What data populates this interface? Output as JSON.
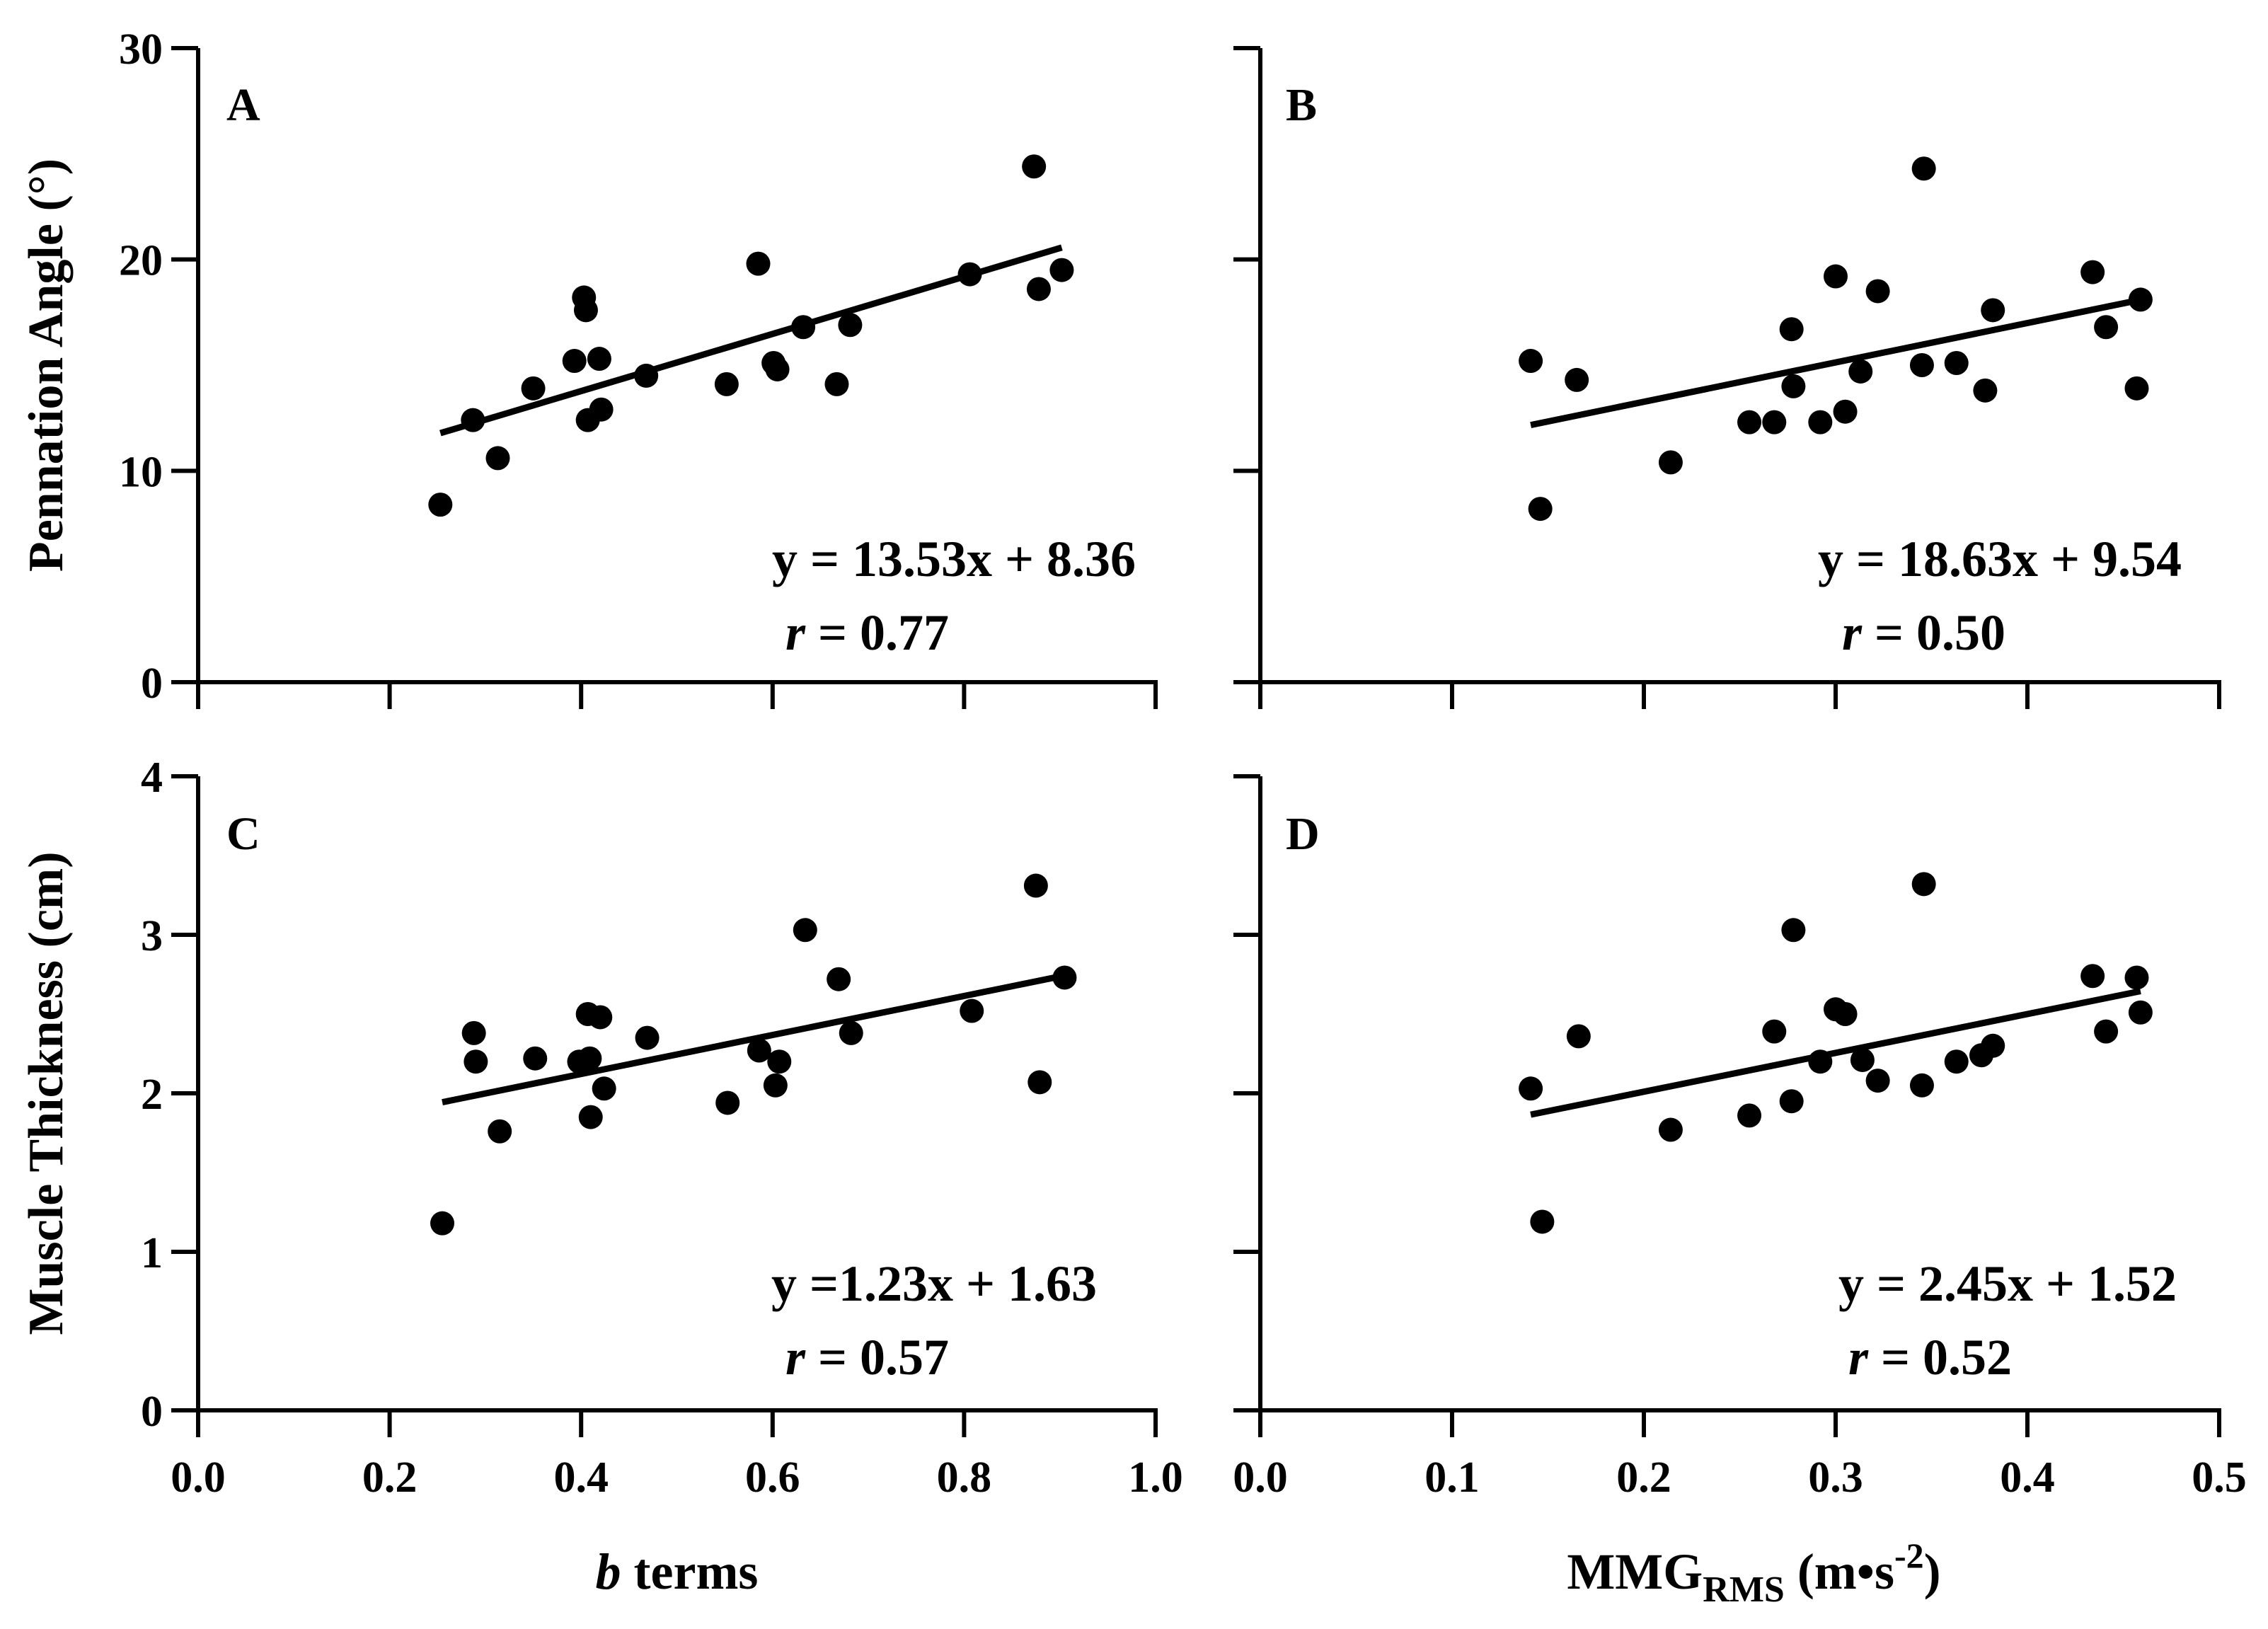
{
  "chart_data": [
    {
      "id": "A",
      "type": "scatter",
      "panel_label": "A",
      "ylabel": "Pennation Angle (°)",
      "xlim": [
        0.0,
        1.0
      ],
      "ylim": [
        0,
        30
      ],
      "xticks": [
        "0.0",
        "0.2",
        "0.4",
        "0.6",
        "0.8",
        "1.0"
      ],
      "yticks": [
        "0",
        "10",
        "20",
        "30"
      ],
      "show_xticklabels": false,
      "show_yticklabels": true,
      "x": [
        0.253,
        0.287,
        0.313,
        0.35,
        0.393,
        0.403,
        0.405,
        0.407,
        0.419,
        0.421,
        0.468,
        0.552,
        0.585,
        0.601,
        0.605,
        0.632,
        0.667,
        0.681,
        0.806,
        0.873,
        0.878,
        0.902
      ],
      "y": [
        8.4,
        12.4,
        10.6,
        13.9,
        15.2,
        18.2,
        17.6,
        12.4,
        15.3,
        12.9,
        14.5,
        14.1,
        19.8,
        15.1,
        14.8,
        16.8,
        14.1,
        16.9,
        19.3,
        24.4,
        18.6,
        19.5
      ],
      "fit": {
        "slope": 13.53,
        "intercept": 8.36,
        "x_range": [
          0.253,
          0.902
        ]
      },
      "equation": "y = 13.53x + 8.36",
      "r_label": "r",
      "r_value": " = 0.77"
    },
    {
      "id": "B",
      "type": "scatter",
      "panel_label": "B",
      "ylabel": "",
      "xlim": [
        0.0,
        0.5
      ],
      "ylim": [
        0,
        30
      ],
      "xticks": [
        "0.0",
        "0.1",
        "0.2",
        "0.3",
        "0.4",
        "0.5"
      ],
      "yticks": [
        "0",
        "10",
        "20",
        "30"
      ],
      "show_xticklabels": false,
      "show_yticklabels": false,
      "x": [
        0.141,
        0.146,
        0.165,
        0.214,
        0.255,
        0.268,
        0.277,
        0.278,
        0.292,
        0.3,
        0.305,
        0.313,
        0.322,
        0.345,
        0.346,
        0.363,
        0.378,
        0.382,
        0.434,
        0.441,
        0.457,
        0.459
      ],
      "y": [
        15.2,
        8.2,
        14.3,
        10.4,
        12.3,
        12.3,
        16.7,
        14.0,
        12.3,
        19.2,
        12.8,
        14.7,
        18.5,
        15.0,
        24.3,
        15.1,
        13.8,
        17.6,
        19.4,
        16.8,
        13.9,
        18.1
      ],
      "fit": {
        "slope": 18.63,
        "intercept": 9.54,
        "x_range": [
          0.141,
          0.459
        ]
      },
      "equation": "y = 18.63x + 9.54",
      "r_label": "r",
      "r_value": " = 0.50"
    },
    {
      "id": "C",
      "type": "scatter",
      "panel_label": "C",
      "ylabel": "Muscle Thickness (cm)",
      "xlabel_italic": "b",
      "xlabel_rest": " terms",
      "xlim": [
        0.0,
        1.0
      ],
      "ylim": [
        0,
        4
      ],
      "xticks": [
        "0.0",
        "0.2",
        "0.4",
        "0.6",
        "0.8",
        "1.0"
      ],
      "yticks": [
        "0",
        "1",
        "2",
        "3",
        "4"
      ],
      "show_xticklabels": true,
      "show_yticklabels": true,
      "x": [
        0.255,
        0.288,
        0.29,
        0.315,
        0.352,
        0.398,
        0.407,
        0.409,
        0.41,
        0.42,
        0.424,
        0.469,
        0.553,
        0.586,
        0.603,
        0.607,
        0.634,
        0.669,
        0.682,
        0.808,
        0.875,
        0.879,
        0.905
      ],
      "y": [
        1.18,
        2.38,
        2.2,
        1.76,
        2.22,
        2.2,
        2.5,
        2.22,
        1.85,
        2.48,
        2.03,
        2.35,
        1.94,
        2.27,
        2.05,
        2.2,
        3.03,
        2.72,
        2.38,
        2.52,
        3.31,
        2.07,
        2.73
      ],
      "fit": {
        "slope": 1.23,
        "intercept": 1.63,
        "x_range": [
          0.255,
          0.905
        ]
      },
      "equation": "y =1.23x + 1.63",
      "r_label": "r",
      "r_value": " = 0.57"
    },
    {
      "id": "D",
      "type": "scatter",
      "panel_label": "D",
      "ylabel": "",
      "xlabel_main": "MMG",
      "xlabel_sub": "RMS",
      "xlabel_unit": " (m•s",
      "xlabel_sup": "-2",
      "xlabel_close": ")",
      "xlim": [
        0.0,
        0.5
      ],
      "ylim": [
        0,
        4
      ],
      "xticks": [
        "0.0",
        "0.1",
        "0.2",
        "0.3",
        "0.4",
        "0.5"
      ],
      "yticks": [
        "0",
        "1",
        "2",
        "3",
        "4"
      ],
      "show_xticklabels": true,
      "show_yticklabels": false,
      "x": [
        0.141,
        0.147,
        0.166,
        0.214,
        0.255,
        0.268,
        0.277,
        0.278,
        0.292,
        0.3,
        0.305,
        0.314,
        0.322,
        0.345,
        0.346,
        0.363,
        0.376,
        0.382,
        0.434,
        0.441,
        0.457,
        0.459
      ],
      "y": [
        2.03,
        1.19,
        2.36,
        1.77,
        1.86,
        2.39,
        1.95,
        3.03,
        2.2,
        2.53,
        2.5,
        2.21,
        2.08,
        2.05,
        3.32,
        2.2,
        2.24,
        2.3,
        2.74,
        2.39,
        2.73,
        2.51
      ],
      "fit": {
        "slope": 2.45,
        "intercept": 1.52,
        "x_range": [
          0.141,
          0.459
        ]
      },
      "equation": "y = 2.45x + 1.52",
      "r_label": "r",
      "r_value": " = 0.52"
    }
  ]
}
